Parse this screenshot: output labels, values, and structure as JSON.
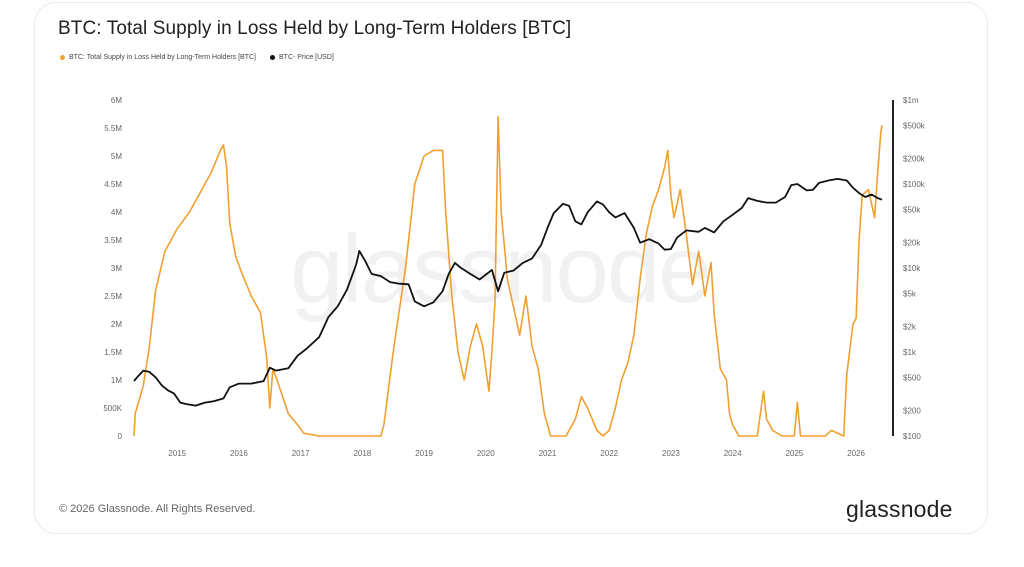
{
  "title": "BTC: Total Supply in Loss Held by Long-Term Holders [BTC]",
  "watermark": "glassnode",
  "footer": "© 2026 Glassnode. All Rights Reserved.",
  "brand": "glassnode",
  "chart_data": {
    "type": "line",
    "title": "BTC: Total Supply in Loss Held by Long-Term Holders [BTC]",
    "legend_position": "top-left",
    "grid": false,
    "x_ticks": [
      "2015",
      "2016",
      "2017",
      "2018",
      "2019",
      "2020",
      "2021",
      "2022",
      "2023",
      "2024",
      "2025",
      "2026"
    ],
    "xlim": [
      2014.3,
      2026.55
    ],
    "y_left": {
      "ticks": [
        "6M",
        "5.5M",
        "5M",
        "4.5M",
        "4M",
        "3.5M",
        "3M",
        "2.5M",
        "2M",
        "1.5M",
        "1M",
        "500K",
        "0"
      ],
      "ylim": [
        0,
        6000000
      ]
    },
    "y_right": {
      "scale": "log",
      "ticks": [
        "$1m",
        "$500k",
        "$200k",
        "$100k",
        "$50k",
        "$20k",
        "$10k",
        "$5k",
        "$2k",
        "$1k",
        "$500",
        "$200",
        "$100"
      ],
      "tick_values": [
        1000000,
        500000,
        200000,
        100000,
        50000,
        20000,
        10000,
        5000,
        2000,
        1000,
        500,
        200,
        100
      ],
      "ylim": [
        100,
        1000000
      ]
    },
    "series": [
      {
        "name": "BTC: Total Supply in Loss Held by Long-Term Holders [BTC]",
        "axis": "left",
        "color": "#f0a030",
        "points": [
          [
            2014.3,
            0
          ],
          [
            2014.32,
            400000
          ],
          [
            2014.45,
            900000
          ],
          [
            2014.55,
            1600000
          ],
          [
            2014.65,
            2600000
          ],
          [
            2014.8,
            3300000
          ],
          [
            2015.0,
            3700000
          ],
          [
            2015.2,
            4000000
          ],
          [
            2015.4,
            4400000
          ],
          [
            2015.55,
            4700000
          ],
          [
            2015.7,
            5100000
          ],
          [
            2015.75,
            5200000
          ],
          [
            2015.8,
            4800000
          ],
          [
            2015.85,
            3800000
          ],
          [
            2015.95,
            3200000
          ],
          [
            2016.05,
            2900000
          ],
          [
            2016.2,
            2500000
          ],
          [
            2016.35,
            2200000
          ],
          [
            2016.45,
            1400000
          ],
          [
            2016.5,
            500000
          ],
          [
            2016.55,
            1200000
          ],
          [
            2016.65,
            900000
          ],
          [
            2016.8,
            400000
          ],
          [
            2016.95,
            200000
          ],
          [
            2017.05,
            50000
          ],
          [
            2017.3,
            0
          ],
          [
            2017.8,
            0
          ],
          [
            2018.3,
            0
          ],
          [
            2018.35,
            200000
          ],
          [
            2018.5,
            1500000
          ],
          [
            2018.7,
            3000000
          ],
          [
            2018.85,
            4500000
          ],
          [
            2019.0,
            5000000
          ],
          [
            2019.15,
            5100000
          ],
          [
            2019.3,
            5100000
          ],
          [
            2019.35,
            4000000
          ],
          [
            2019.45,
            2500000
          ],
          [
            2019.55,
            1500000
          ],
          [
            2019.65,
            1000000
          ],
          [
            2019.75,
            1600000
          ],
          [
            2019.85,
            2000000
          ],
          [
            2019.95,
            1600000
          ],
          [
            2020.05,
            800000
          ],
          [
            2020.1,
            1500000
          ],
          [
            2020.15,
            2400000
          ],
          [
            2020.2,
            5700000
          ],
          [
            2020.25,
            4000000
          ],
          [
            2020.35,
            2800000
          ],
          [
            2020.45,
            2300000
          ],
          [
            2020.55,
            1800000
          ],
          [
            2020.65,
            2500000
          ],
          [
            2020.75,
            1600000
          ],
          [
            2020.85,
            1200000
          ],
          [
            2020.95,
            400000
          ],
          [
            2021.05,
            0
          ],
          [
            2021.3,
            0
          ],
          [
            2021.45,
            300000
          ],
          [
            2021.55,
            700000
          ],
          [
            2021.65,
            500000
          ],
          [
            2021.8,
            100000
          ],
          [
            2021.9,
            0
          ],
          [
            2022.0,
            100000
          ],
          [
            2022.1,
            500000
          ],
          [
            2022.2,
            1000000
          ],
          [
            2022.3,
            1300000
          ],
          [
            2022.4,
            1800000
          ],
          [
            2022.5,
            2800000
          ],
          [
            2022.6,
            3600000
          ],
          [
            2022.7,
            4100000
          ],
          [
            2022.8,
            4400000
          ],
          [
            2022.9,
            4800000
          ],
          [
            2022.95,
            5100000
          ],
          [
            2023.0,
            4300000
          ],
          [
            2023.05,
            3900000
          ],
          [
            2023.15,
            4400000
          ],
          [
            2023.25,
            3600000
          ],
          [
            2023.35,
            2700000
          ],
          [
            2023.45,
            3300000
          ],
          [
            2023.55,
            2500000
          ],
          [
            2023.65,
            3100000
          ],
          [
            2023.7,
            2200000
          ],
          [
            2023.8,
            1200000
          ],
          [
            2023.9,
            1000000
          ],
          [
            2023.95,
            400000
          ],
          [
            2024.0,
            200000
          ],
          [
            2024.1,
            0
          ],
          [
            2024.4,
            0
          ],
          [
            2024.5,
            800000
          ],
          [
            2024.55,
            300000
          ],
          [
            2024.65,
            100000
          ],
          [
            2024.8,
            0
          ],
          [
            2024.95,
            0
          ],
          [
            2025.0,
            0
          ],
          [
            2025.05,
            600000
          ],
          [
            2025.1,
            0
          ],
          [
            2025.5,
            0
          ],
          [
            2025.6,
            100000
          ],
          [
            2025.8,
            0
          ],
          [
            2025.85,
            1100000
          ],
          [
            2025.95,
            2000000
          ],
          [
            2026.0,
            2100000
          ],
          [
            2026.05,
            3500000
          ],
          [
            2026.1,
            4300000
          ],
          [
            2026.2,
            4400000
          ],
          [
            2026.3,
            3900000
          ],
          [
            2026.35,
            4700000
          ],
          [
            2026.4,
            5400000
          ],
          [
            2026.42,
            5550000
          ]
        ]
      },
      {
        "name": "BTC- Price [USD]",
        "axis": "right",
        "color": "#111111",
        "points": [
          [
            2014.3,
            450
          ],
          [
            2014.35,
            500
          ],
          [
            2014.45,
            600
          ],
          [
            2014.55,
            580
          ],
          [
            2014.65,
            500
          ],
          [
            2014.75,
            400
          ],
          [
            2014.85,
            350
          ],
          [
            2014.95,
            320
          ],
          [
            2015.05,
            250
          ],
          [
            2015.15,
            240
          ],
          [
            2015.3,
            230
          ],
          [
            2015.45,
            250
          ],
          [
            2015.6,
            260
          ],
          [
            2015.75,
            280
          ],
          [
            2015.85,
            380
          ],
          [
            2016.0,
            420
          ],
          [
            2016.2,
            420
          ],
          [
            2016.4,
            450
          ],
          [
            2016.5,
            650
          ],
          [
            2016.6,
            600
          ],
          [
            2016.8,
            640
          ],
          [
            2016.95,
            900
          ],
          [
            2017.1,
            1100
          ],
          [
            2017.3,
            1500
          ],
          [
            2017.45,
            2600
          ],
          [
            2017.6,
            3500
          ],
          [
            2017.75,
            5500
          ],
          [
            2017.9,
            11000
          ],
          [
            2017.95,
            16000
          ],
          [
            2018.05,
            12000
          ],
          [
            2018.15,
            8500
          ],
          [
            2018.3,
            8000
          ],
          [
            2018.45,
            6800
          ],
          [
            2018.6,
            6500
          ],
          [
            2018.75,
            6400
          ],
          [
            2018.85,
            4000
          ],
          [
            2019.0,
            3500
          ],
          [
            2019.15,
            3900
          ],
          [
            2019.3,
            5300
          ],
          [
            2019.4,
            8500
          ],
          [
            2019.5,
            11500
          ],
          [
            2019.6,
            10000
          ],
          [
            2019.75,
            8500
          ],
          [
            2019.9,
            7300
          ],
          [
            2020.1,
            9500
          ],
          [
            2020.2,
            5300
          ],
          [
            2020.3,
            8800
          ],
          [
            2020.45,
            9300
          ],
          [
            2020.6,
            11500
          ],
          [
            2020.75,
            13000
          ],
          [
            2020.9,
            19000
          ],
          [
            2021.0,
            30000
          ],
          [
            2021.1,
            45000
          ],
          [
            2021.25,
            58000
          ],
          [
            2021.35,
            55000
          ],
          [
            2021.45,
            36000
          ],
          [
            2021.55,
            33000
          ],
          [
            2021.65,
            46000
          ],
          [
            2021.8,
            62000
          ],
          [
            2021.9,
            57000
          ],
          [
            2022.0,
            46000
          ],
          [
            2022.1,
            40000
          ],
          [
            2022.25,
            45000
          ],
          [
            2022.4,
            30000
          ],
          [
            2022.5,
            20000
          ],
          [
            2022.65,
            22000
          ],
          [
            2022.8,
            19500
          ],
          [
            2022.9,
            16500
          ],
          [
            2023.0,
            16800
          ],
          [
            2023.1,
            23000
          ],
          [
            2023.25,
            28000
          ],
          [
            2023.45,
            27000
          ],
          [
            2023.55,
            30000
          ],
          [
            2023.7,
            26500
          ],
          [
            2023.85,
            36000
          ],
          [
            2024.0,
            43000
          ],
          [
            2024.15,
            52000
          ],
          [
            2024.25,
            68000
          ],
          [
            2024.4,
            63000
          ],
          [
            2024.55,
            60000
          ],
          [
            2024.7,
            60000
          ],
          [
            2024.85,
            70000
          ],
          [
            2024.95,
            97000
          ],
          [
            2025.05,
            100000
          ],
          [
            2025.2,
            84000
          ],
          [
            2025.3,
            85000
          ],
          [
            2025.4,
            103000
          ],
          [
            2025.55,
            110000
          ],
          [
            2025.7,
            115000
          ],
          [
            2025.85,
            110000
          ],
          [
            2025.95,
            90000
          ],
          [
            2026.05,
            78000
          ],
          [
            2026.15,
            70000
          ],
          [
            2026.25,
            75000
          ],
          [
            2026.35,
            68000
          ],
          [
            2026.42,
            65000
          ]
        ]
      }
    ]
  }
}
